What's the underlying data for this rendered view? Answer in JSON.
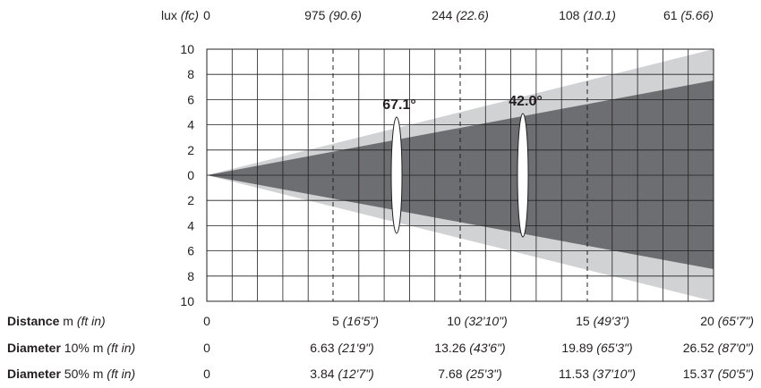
{
  "lux_row": {
    "label": "lux",
    "unit": "(fc)",
    "zero": "0",
    "values": [
      {
        "lux": "975",
        "fc": "(90.6)"
      },
      {
        "lux": "244",
        "fc": "(22.6)"
      },
      {
        "lux": "108",
        "fc": "(10.1)"
      },
      {
        "lux": "61",
        "fc": "(5.66)"
      }
    ]
  },
  "y_axis": {
    "ticks": [
      "10",
      "8",
      "6",
      "4",
      "2",
      "0",
      "2",
      "4",
      "6",
      "8",
      "10"
    ]
  },
  "beams": {
    "field_angle": "67.1°",
    "beam_angle": "42.0°",
    "field_color": "#d1d2d4",
    "beam_color": "#6d6e71"
  },
  "distance_row": {
    "label_bold": "Distance",
    "label_unit": " m ",
    "label_italic": "(ft in)",
    "zero": "0",
    "values": [
      {
        "m": "5",
        "ft": "(16'5\")"
      },
      {
        "m": "10",
        "ft": "(32'10\")"
      },
      {
        "m": "15",
        "ft": "(49'3\")"
      },
      {
        "m": "20",
        "ft": "(65'7\")"
      }
    ]
  },
  "diameter10_row": {
    "label_bold": "Diameter",
    "label_unit": " 10% m ",
    "label_italic": "(ft in)",
    "zero": "0",
    "values": [
      {
        "m": "6.63",
        "ft": "(21'9\")"
      },
      {
        "m": "13.26",
        "ft": "(43'6\")"
      },
      {
        "m": "19.89",
        "ft": "(65'3\")"
      },
      {
        "m": "26.52",
        "ft": "(87'0\")"
      }
    ]
  },
  "diameter50_row": {
    "label_bold": "Diameter",
    "label_unit": " 50% m ",
    "label_italic": "(ft in)",
    "zero": "0",
    "values": [
      {
        "m": "3.84",
        "ft": "(12'7\")"
      },
      {
        "m": "7.68",
        "ft": "(25'3\")"
      },
      {
        "m": "11.53",
        "ft": "(37'10\")"
      },
      {
        "m": "15.37",
        "ft": "(50'5\")"
      }
    ]
  }
}
